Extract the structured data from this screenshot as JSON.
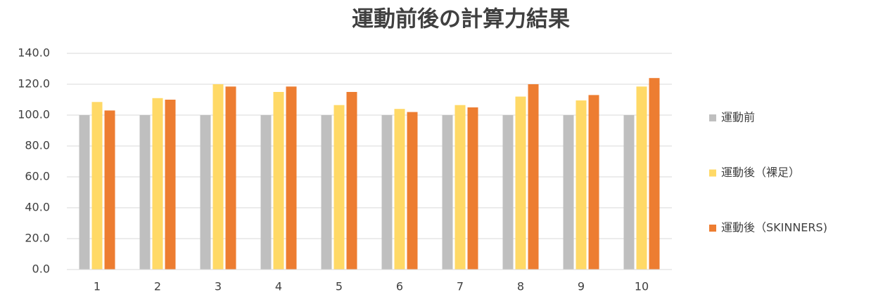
{
  "chart_data": {
    "type": "bar",
    "title": "運動前後の計算力結果",
    "categories": [
      "1",
      "2",
      "3",
      "4",
      "5",
      "6",
      "7",
      "8",
      "9",
      "10"
    ],
    "series": [
      {
        "name": "運動前",
        "color": "#bfbfbf",
        "values": [
          100,
          100,
          100,
          100,
          100,
          100,
          100,
          100,
          100,
          100
        ]
      },
      {
        "name": "運動後（裸足）",
        "color": "#ffd966",
        "values": [
          108.5,
          111,
          120,
          115,
          106.5,
          104,
          106.5,
          112,
          109.5,
          118.5
        ]
      },
      {
        "name": "運動後（SKINNERS)",
        "color": "#ed7d31",
        "values": [
          103,
          110,
          118.5,
          118.5,
          115,
          102,
          105,
          120,
          113,
          124
        ]
      }
    ],
    "ylim": [
      0,
      140
    ],
    "yticks": [
      {
        "value": 0,
        "label": "0.0"
      },
      {
        "value": 20,
        "label": "20.0"
      },
      {
        "value": 40,
        "label": "40.0"
      },
      {
        "value": 60,
        "label": "60.0"
      },
      {
        "value": 80,
        "label": "80.0"
      },
      {
        "value": 100,
        "label": "100.0"
      },
      {
        "value": 120,
        "label": "120.0"
      },
      {
        "value": 140,
        "label": "140.0"
      }
    ],
    "grid": true,
    "legend": "right"
  }
}
